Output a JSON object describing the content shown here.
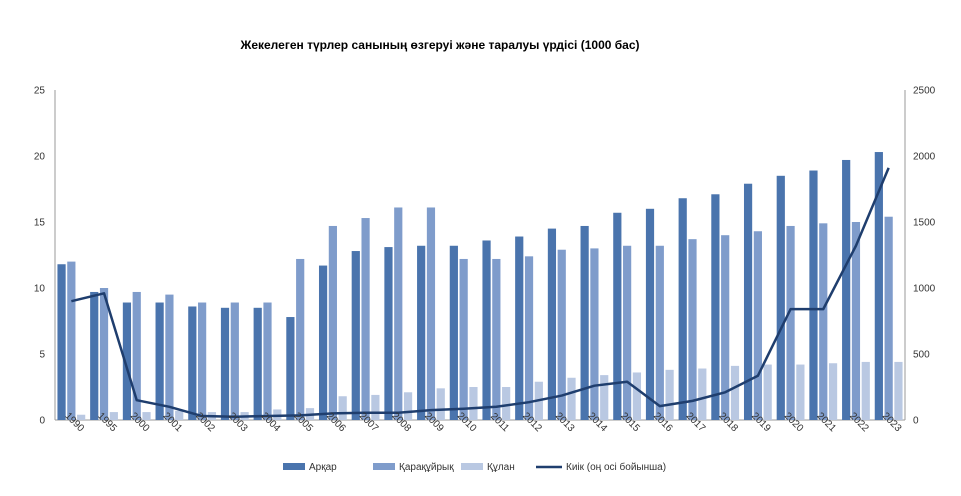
{
  "chart_data": {
    "type": "bar",
    "title": "Жекелеген түрлер санының өзгеруі және таралуы үрдісі (1000 бас)",
    "categories": [
      "1990",
      "1995",
      "2000",
      "2001",
      "2002",
      "2003",
      "2004",
      "2005",
      "2006",
      "2007",
      "2008",
      "2009",
      "2010",
      "2011",
      "2012",
      "2013",
      "2014",
      "2015",
      "2016",
      "2017",
      "2018",
      "2019",
      "2020",
      "2021",
      "2022",
      "2023"
    ],
    "ylim_left": [
      0,
      25
    ],
    "yticks_left": [
      "0",
      "5",
      "10",
      "15",
      "20",
      "25"
    ],
    "ylim_right": [
      0,
      2500
    ],
    "yticks_right": [
      "0",
      "500",
      "1000",
      "1500",
      "2000",
      "2500"
    ],
    "grid": false,
    "legend_position": "bottom",
    "series": [
      {
        "name": "Арқар",
        "type": "bar",
        "axis": "left",
        "color": "#4a74ad",
        "values": [
          11.8,
          9.7,
          8.9,
          8.9,
          8.6,
          8.5,
          8.5,
          7.8,
          11.7,
          12.8,
          13.1,
          13.2,
          13.2,
          13.6,
          13.9,
          14.5,
          14.7,
          15.7,
          16.0,
          16.8,
          17.1,
          17.9,
          18.5,
          18.9,
          19.7,
          20.3
        ]
      },
      {
        "name": "Қарақұйрық",
        "type": "bar",
        "axis": "left",
        "color": "#7f9ccb",
        "values": [
          12.0,
          10.0,
          9.7,
          9.5,
          8.9,
          8.9,
          8.9,
          12.2,
          14.7,
          15.3,
          16.1,
          16.1,
          12.2,
          12.2,
          12.4,
          12.9,
          13.0,
          13.2,
          13.2,
          13.7,
          14.0,
          14.3,
          14.7,
          14.9,
          15.0,
          15.4
        ]
      },
      {
        "name": "Құлан",
        "type": "bar",
        "axis": "left",
        "color": "#b9c8e2",
        "values": [
          0.4,
          0.6,
          0.6,
          0.7,
          0.6,
          0.6,
          0.8,
          0.9,
          1.8,
          1.9,
          2.1,
          2.4,
          2.5,
          2.5,
          2.9,
          3.2,
          3.4,
          3.6,
          3.8,
          3.9,
          4.1,
          4.2,
          4.2,
          4.3,
          4.4,
          4.4
        ]
      },
      {
        "name": "Киік (оң осі бойынша)",
        "type": "line",
        "axis": "right",
        "color": "#1f3e6e",
        "values": [
          900,
          960,
          150,
          100,
          30,
          25,
          30,
          35,
          50,
          55,
          55,
          75,
          85,
          100,
          135,
          185,
          260,
          290,
          105,
          145,
          210,
          335,
          840,
          840,
          1320,
          1910
        ]
      }
    ]
  }
}
